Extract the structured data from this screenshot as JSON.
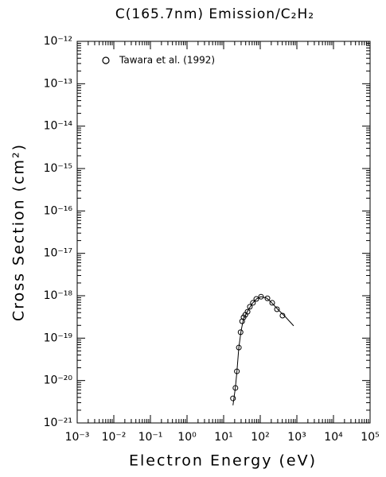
{
  "chart_data": {
    "type": "scatter",
    "title": "C(165.7nm) Emission/C₂H₂",
    "x_label": "Electron Energy (eV)",
    "y_label": "Cross Section (cm²)",
    "xscale": "log",
    "yscale": "log",
    "grid": false,
    "legend": "upper left",
    "xlim": [
      0.001,
      100000
    ],
    "ylim": [
      1e-21,
      1e-12
    ],
    "xticks": [
      {
        "value": 0.001,
        "label": "10⁻³"
      },
      {
        "value": 0.01,
        "label": "10⁻²"
      },
      {
        "value": 0.1,
        "label": "10⁻¹"
      },
      {
        "value": 1,
        "label": "10⁰"
      },
      {
        "value": 10,
        "label": "10¹"
      },
      {
        "value": 100,
        "label": "10²"
      },
      {
        "value": 1000,
        "label": "10³"
      },
      {
        "value": 10000,
        "label": "10⁴"
      },
      {
        "value": 100000,
        "label": "10⁵"
      }
    ],
    "yticks": [
      {
        "value": 1e-21,
        "label": "10⁻²¹"
      },
      {
        "value": 1e-20,
        "label": "10⁻²⁰"
      },
      {
        "value": 1e-19,
        "label": "10⁻¹⁹"
      },
      {
        "value": 1e-18,
        "label": "10⁻¹⁸"
      },
      {
        "value": 1e-17,
        "label": "10⁻¹⁷"
      },
      {
        "value": 1e-16,
        "label": "10⁻¹⁶"
      },
      {
        "value": 1e-15,
        "label": "10⁻¹⁵"
      },
      {
        "value": 1e-14,
        "label": "10⁻¹⁴"
      },
      {
        "value": 1e-13,
        "label": "10⁻¹³"
      },
      {
        "value": 1e-12,
        "label": "10⁻¹²"
      }
    ],
    "series": [
      {
        "name": "Tawara et al. (1992)",
        "color": "#000000",
        "marker": "circle",
        "x": [
          18,
          21,
          23,
          26,
          29,
          32,
          35,
          39,
          45,
          52,
          63,
          78,
          105,
          157,
          212,
          286,
          405
        ],
        "values": [
          3.8e-21,
          6.7e-21,
          1.65e-20,
          6e-20,
          1.38e-19,
          2.5e-19,
          3.1e-19,
          3.55e-19,
          4.2e-19,
          5.5e-19,
          6.8e-19,
          8.4e-19,
          9.5e-19,
          8.7e-19,
          6.8e-19,
          4.8e-19,
          3.4e-19
        ]
      },
      {
        "color": "#000000",
        "marker": "line",
        "x": [
          18,
          21,
          23,
          26,
          30,
          35,
          45,
          60,
          80,
          105,
          150,
          200,
          300,
          500,
          818
        ],
        "values": [
          2.6e-21,
          7e-21,
          1.6e-20,
          6e-20,
          1.5e-19,
          2.9e-19,
          4.3e-19,
          6.5e-19,
          8.5e-19,
          9.5e-19,
          8.8e-19,
          7e-19,
          4.8e-19,
          3.1e-19,
          1.95e-19
        ]
      }
    ]
  }
}
